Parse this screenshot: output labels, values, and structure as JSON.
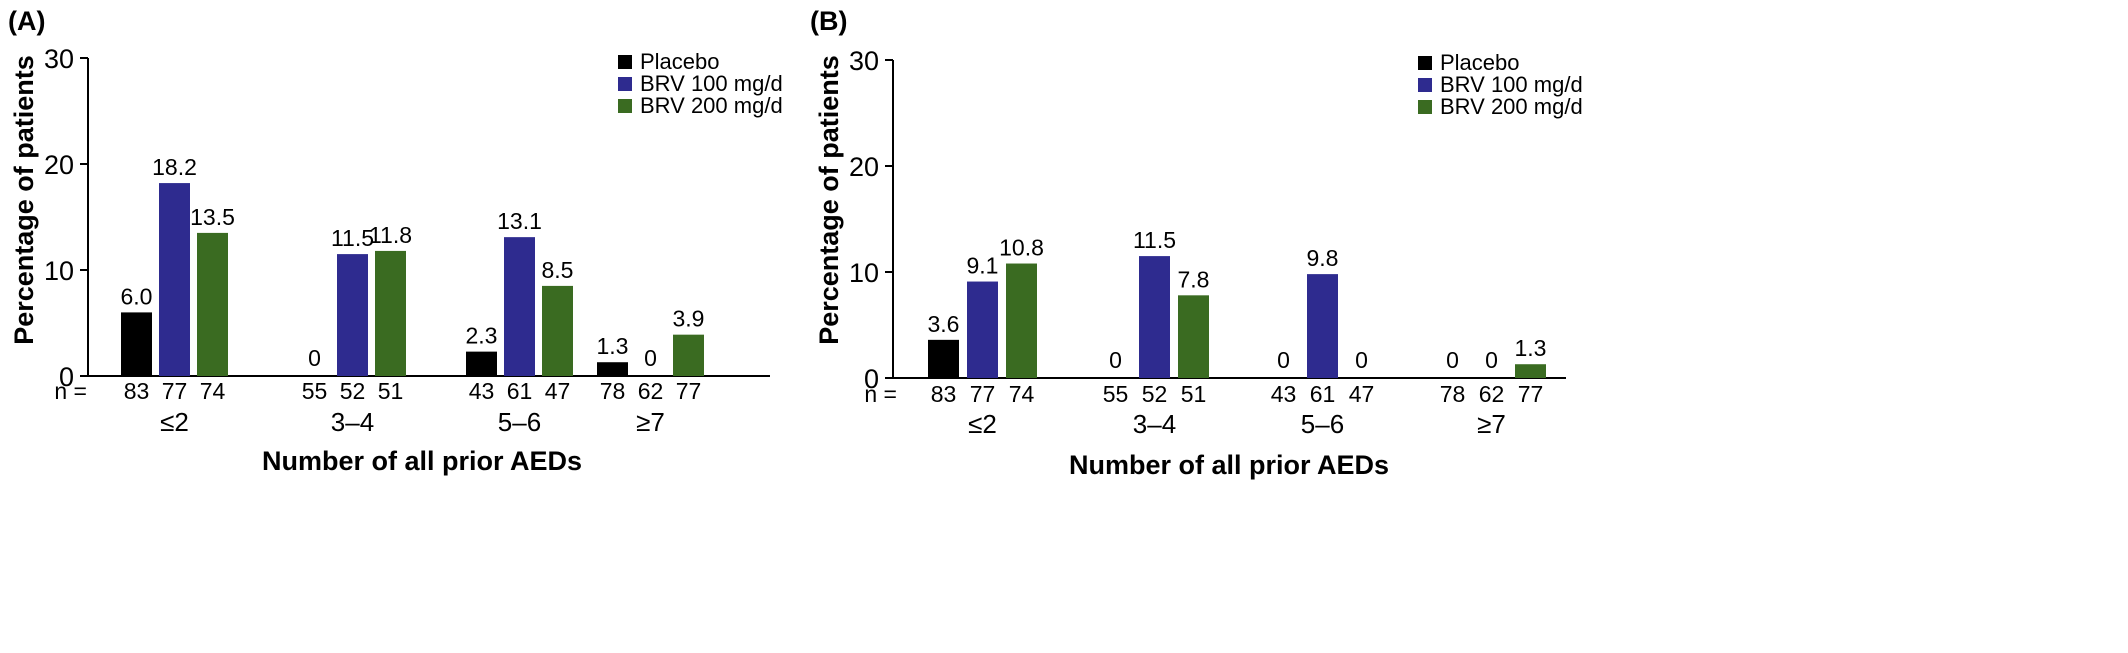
{
  "chart_data": [
    {
      "type": "bar",
      "panel_label": "(A)",
      "ylabel": "Percentage of patients",
      "xlabel": "Number of all prior AEDs",
      "ylim": [
        0,
        30
      ],
      "yticks": [
        0,
        10,
        20,
        30
      ],
      "grid": false,
      "legend_position": "top-right",
      "n_prefix": "n =",
      "categories": [
        "≤2",
        "3–4",
        "5–6",
        "≥7"
      ],
      "series": [
        {
          "name": "Placebo",
          "color": "#000000",
          "values": [
            6.0,
            0,
            2.3,
            1.3
          ],
          "labels": [
            "6.0",
            "0",
            "2.3",
            "1.3"
          ],
          "n": [
            "83",
            "55",
            "43",
            "78"
          ]
        },
        {
          "name": "BRV 100 mg/d",
          "color": "#2e2b8f",
          "values": [
            18.2,
            11.5,
            13.1,
            0
          ],
          "labels": [
            "18.2",
            "11.5",
            "13.1",
            "0"
          ],
          "n": [
            "77",
            "52",
            "61",
            "62"
          ]
        },
        {
          "name": "BRV 200 mg/d",
          "color": "#3a6b21",
          "values": [
            13.5,
            11.8,
            8.5,
            3.9
          ],
          "labels": [
            "13.5",
            "11.8",
            "8.5",
            "3.9"
          ],
          "n": [
            "74",
            "51",
            "47",
            "77"
          ]
        }
      ]
    },
    {
      "type": "bar",
      "panel_label": "(B)",
      "ylabel": "Percentage of patients",
      "xlabel": "Number of all prior AEDs",
      "ylim": [
        0,
        30
      ],
      "yticks": [
        0,
        10,
        20,
        30
      ],
      "grid": false,
      "legend_position": "top-right",
      "n_prefix": "n =",
      "categories": [
        "≤2",
        "3–4",
        "5–6",
        "≥7"
      ],
      "series": [
        {
          "name": "Placebo",
          "color": "#000000",
          "values": [
            3.6,
            0,
            0,
            0
          ],
          "labels": [
            "3.6",
            "0",
            "0",
            "0"
          ],
          "n": [
            "83",
            "55",
            "43",
            "78"
          ]
        },
        {
          "name": "BRV 100 mg/d",
          "color": "#2e2b8f",
          "values": [
            9.1,
            11.5,
            9.8,
            0
          ],
          "labels": [
            "9.1",
            "11.5",
            "9.8",
            "0"
          ],
          "n": [
            "77",
            "52",
            "61",
            "62"
          ]
        },
        {
          "name": "BRV 200 mg/d",
          "color": "#3a6b21",
          "values": [
            10.8,
            7.8,
            0,
            1.3
          ],
          "labels": [
            "10.8",
            "7.8",
            "0",
            "1.3"
          ],
          "n": [
            "74",
            "51",
            "47",
            "77"
          ]
        }
      ]
    }
  ]
}
